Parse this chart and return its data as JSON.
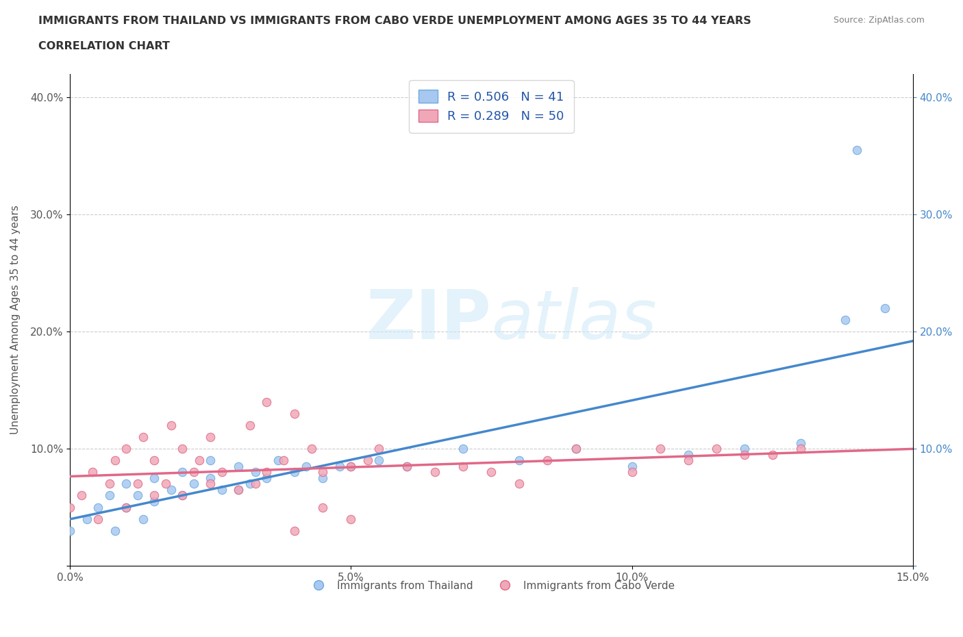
{
  "title_line1": "IMMIGRANTS FROM THAILAND VS IMMIGRANTS FROM CABO VERDE UNEMPLOYMENT AMONG AGES 35 TO 44 YEARS",
  "title_line2": "CORRELATION CHART",
  "source_text": "Source: ZipAtlas.com",
  "ylabel": "Unemployment Among Ages 35 to 44 years",
  "xlim": [
    0.0,
    0.15
  ],
  "ylim": [
    0.0,
    0.42
  ],
  "xticks": [
    0.0,
    0.05,
    0.1,
    0.15
  ],
  "xtick_labels": [
    "0.0%",
    "5.0%",
    "10.0%",
    "15.0%"
  ],
  "yticks": [
    0.0,
    0.1,
    0.2,
    0.3,
    0.4
  ],
  "ytick_labels": [
    "",
    "10.0%",
    "20.0%",
    "30.0%",
    "40.0%"
  ],
  "thailand_color": "#a8c8f0",
  "thailand_edge": "#6aaae0",
  "cabo_verde_color": "#f0a8b8",
  "cabo_verde_edge": "#e06888",
  "regression_thailand_color": "#4488cc",
  "regression_cabo_verde_color": "#e06888",
  "R_thailand": 0.506,
  "N_thailand": 41,
  "R_cabo_verde": 0.289,
  "N_cabo_verde": 50,
  "legend_label_thailand": "Immigrants from Thailand",
  "legend_label_cabo_verde": "Immigrants from Cabo Verde",
  "watermark_zip": "ZIP",
  "watermark_atlas": "atlas",
  "title_color": "#333333",
  "axis_color": "#555555",
  "grid_color": "#cccccc",
  "legend_text_color": "#2255aa",
  "thailand_scatter_x": [
    0.0,
    0.003,
    0.005,
    0.007,
    0.008,
    0.01,
    0.01,
    0.012,
    0.013,
    0.015,
    0.015,
    0.018,
    0.02,
    0.02,
    0.022,
    0.025,
    0.025,
    0.027,
    0.03,
    0.03,
    0.032,
    0.033,
    0.035,
    0.037,
    0.04,
    0.042,
    0.045,
    0.048,
    0.05,
    0.055,
    0.06,
    0.07,
    0.08,
    0.09,
    0.1,
    0.11,
    0.12,
    0.13,
    0.138,
    0.14,
    0.145
  ],
  "thailand_scatter_y": [
    0.03,
    0.04,
    0.05,
    0.06,
    0.03,
    0.05,
    0.07,
    0.06,
    0.04,
    0.055,
    0.075,
    0.065,
    0.06,
    0.08,
    0.07,
    0.075,
    0.09,
    0.065,
    0.065,
    0.085,
    0.07,
    0.08,
    0.075,
    0.09,
    0.08,
    0.085,
    0.075,
    0.085,
    0.085,
    0.09,
    0.085,
    0.1,
    0.09,
    0.1,
    0.085,
    0.095,
    0.1,
    0.105,
    0.21,
    0.355,
    0.22
  ],
  "cabo_verde_scatter_x": [
    0.0,
    0.002,
    0.004,
    0.005,
    0.007,
    0.008,
    0.01,
    0.01,
    0.012,
    0.013,
    0.015,
    0.015,
    0.017,
    0.018,
    0.02,
    0.02,
    0.022,
    0.023,
    0.025,
    0.025,
    0.027,
    0.03,
    0.032,
    0.033,
    0.035,
    0.038,
    0.04,
    0.043,
    0.045,
    0.05,
    0.053,
    0.055,
    0.06,
    0.065,
    0.07,
    0.075,
    0.08,
    0.085,
    0.09,
    0.1,
    0.105,
    0.11,
    0.115,
    0.12,
    0.125,
    0.13,
    0.035,
    0.04,
    0.045,
    0.05
  ],
  "cabo_verde_scatter_y": [
    0.05,
    0.06,
    0.08,
    0.04,
    0.07,
    0.09,
    0.05,
    0.1,
    0.07,
    0.11,
    0.06,
    0.09,
    0.07,
    0.12,
    0.06,
    0.1,
    0.08,
    0.09,
    0.07,
    0.11,
    0.08,
    0.065,
    0.12,
    0.07,
    0.08,
    0.09,
    0.13,
    0.1,
    0.08,
    0.085,
    0.09,
    0.1,
    0.085,
    0.08,
    0.085,
    0.08,
    0.07,
    0.09,
    0.1,
    0.08,
    0.1,
    0.09,
    0.1,
    0.095,
    0.095,
    0.1,
    0.14,
    0.03,
    0.05,
    0.04
  ]
}
